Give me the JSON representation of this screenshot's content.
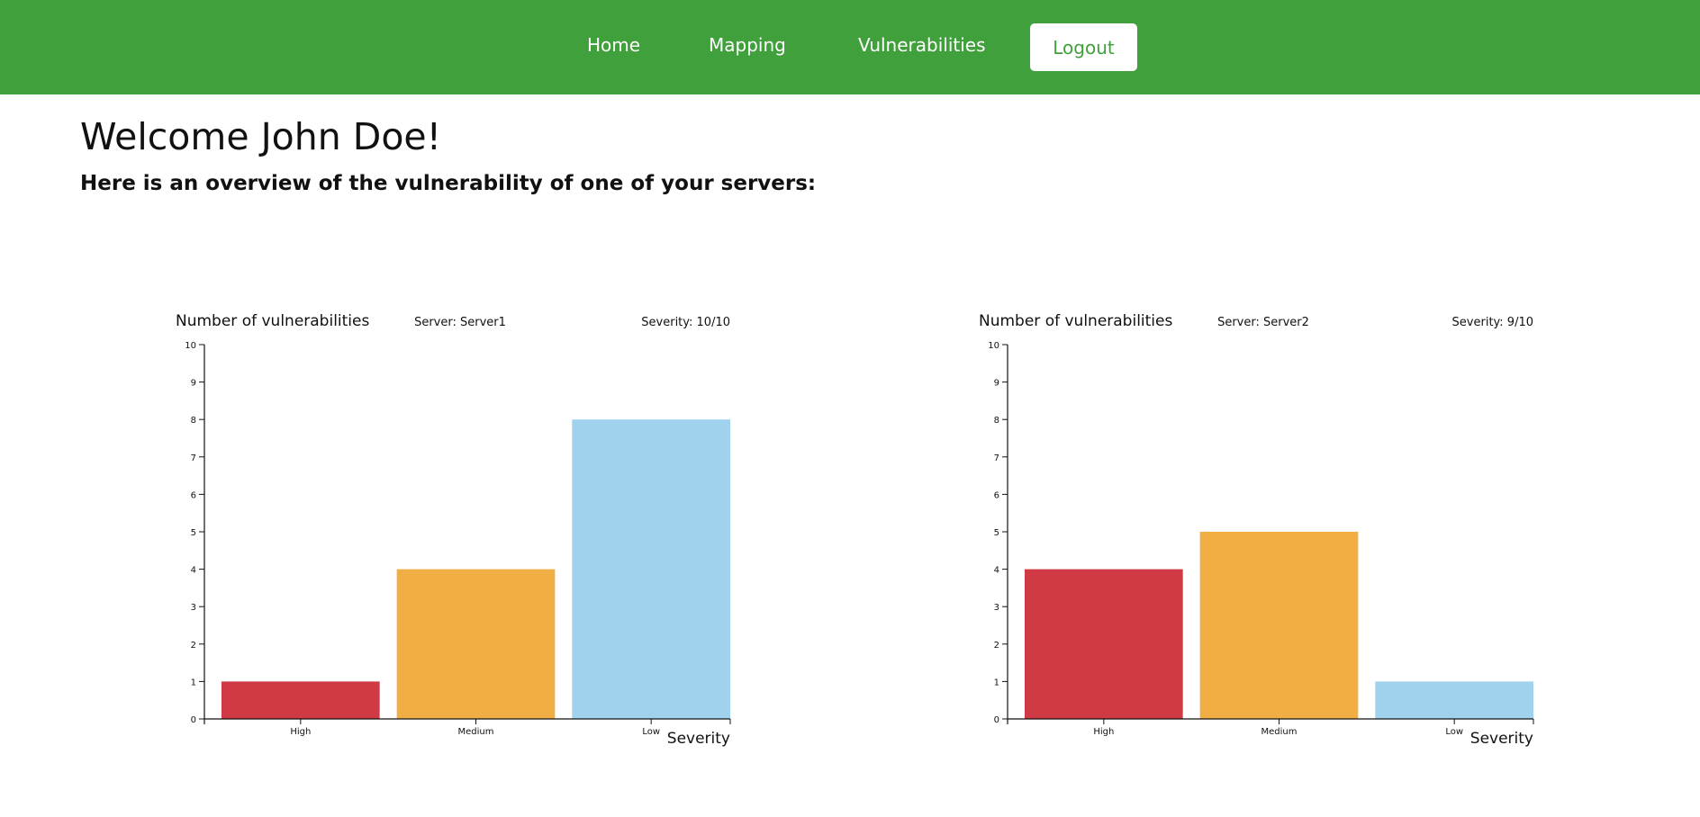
{
  "nav": {
    "items": [
      {
        "label": "Home"
      },
      {
        "label": "Mapping"
      },
      {
        "label": "Vulnerabilities"
      }
    ],
    "logout_label": "Logout"
  },
  "main": {
    "welcome": "Welcome John Doe!",
    "subtitle": "Here is an overview of the vulnerability of one of your servers:"
  },
  "colors": {
    "nav_bg": "#40a03b",
    "high": "#cf3a45",
    "medium": "#f0ae45",
    "low": "#a0d2ee"
  },
  "chart_data": [
    {
      "type": "bar",
      "ylabel": "Number of vulnerabilities",
      "xlabel": "Severity",
      "server": "Server: Server1",
      "severity": "Severity: 10/10",
      "categories": [
        "High",
        "Medium",
        "Low"
      ],
      "values": [
        1,
        4,
        8
      ],
      "ylim": [
        0,
        10
      ],
      "yticks": [
        0,
        1,
        2,
        3,
        4,
        5,
        6,
        7,
        8,
        9,
        10
      ],
      "grid": false
    },
    {
      "type": "bar",
      "ylabel": "Number of vulnerabilities",
      "xlabel": "Severity",
      "server": "Server: Server2",
      "severity": "Severity: 9/10",
      "categories": [
        "High",
        "Medium",
        "Low"
      ],
      "values": [
        4,
        5,
        1
      ],
      "ylim": [
        0,
        10
      ],
      "yticks": [
        0,
        1,
        2,
        3,
        4,
        5,
        6,
        7,
        8,
        9,
        10
      ],
      "grid": false
    }
  ]
}
